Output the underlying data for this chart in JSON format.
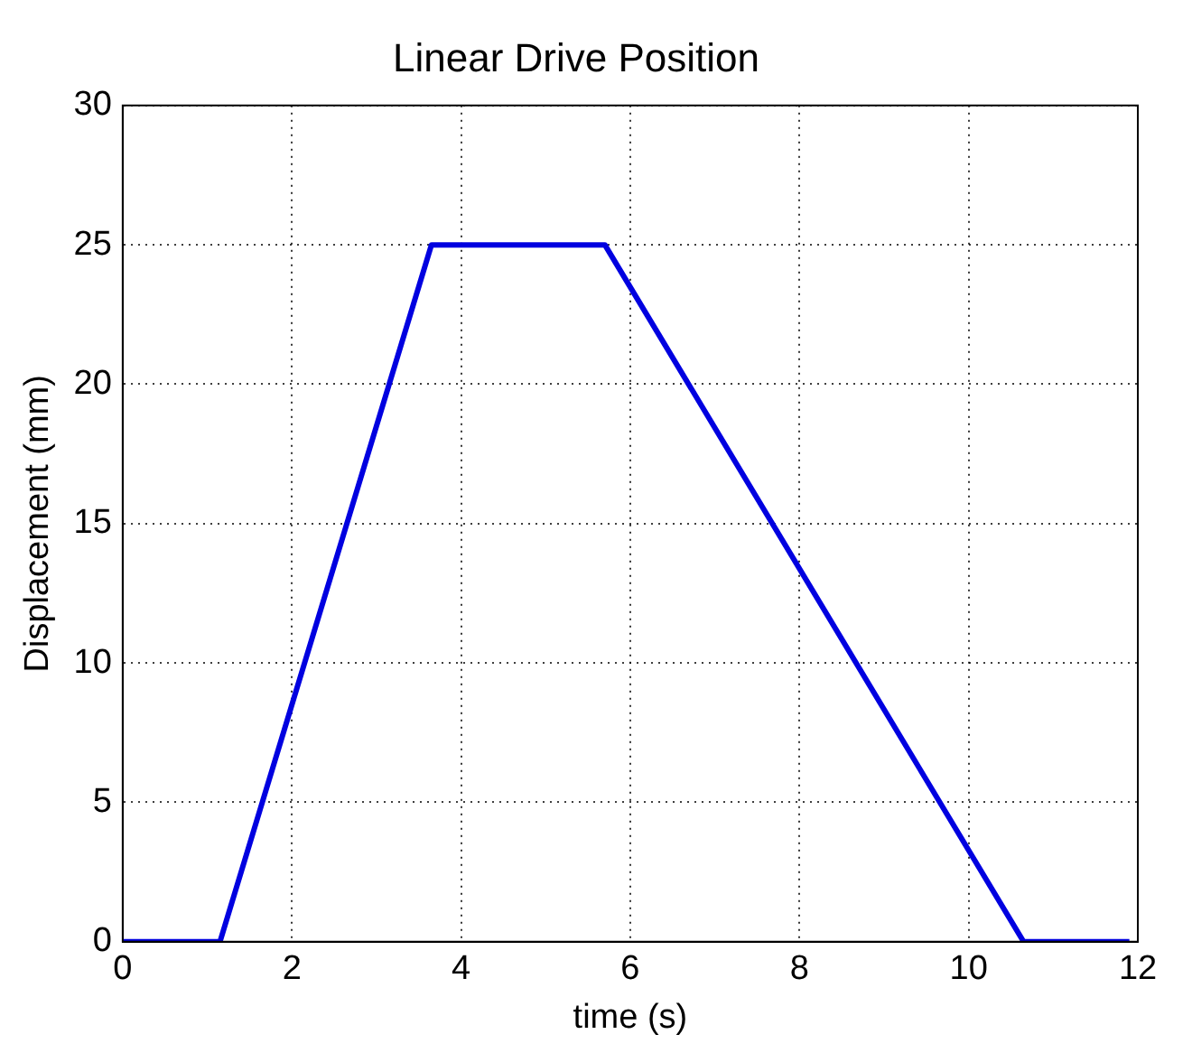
{
  "chart_data": {
    "type": "line",
    "title": "Linear Drive Position",
    "xlabel": "time (s)",
    "ylabel": "Displacement (mm)",
    "x": [
      0,
      1.15,
      3.65,
      5.7,
      10.65,
      11.9
    ],
    "series": [
      {
        "color": "#0000e0",
        "values": [
          0,
          0,
          25,
          25,
          0,
          0
        ]
      }
    ],
    "xlim": [
      0,
      12
    ],
    "xticks": [
      0,
      2,
      4,
      6,
      8,
      10,
      12
    ],
    "ylim": [
      0,
      30
    ],
    "yticks": [
      0,
      5,
      10,
      15,
      20,
      25,
      30
    ],
    "grid": true,
    "legend": false,
    "marker": "none",
    "line_style": "solid"
  }
}
